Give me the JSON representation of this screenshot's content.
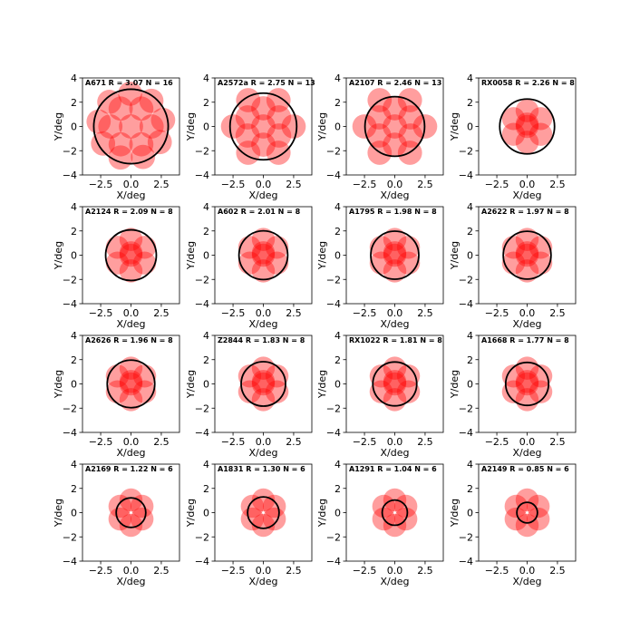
{
  "colors": {
    "fill": "#ff0000",
    "ring": "#000000",
    "axis": "#000000"
  },
  "chart_data": {
    "type": "scatter",
    "layout": "4x4 grid of panels",
    "xlabel": "X/deg",
    "ylabel": "Y/deg",
    "xlim": [
      -4,
      4
    ],
    "ylim": [
      -4,
      4
    ],
    "xticks": [
      "−2.5",
      "0.0",
      "2.5"
    ],
    "xtick_values": [
      -2.5,
      0.0,
      2.5
    ],
    "yticks": [
      "4",
      "2",
      "0",
      "−2",
      "−4"
    ],
    "ytick_values": [
      4,
      2,
      0,
      -2,
      -4
    ],
    "grid": false,
    "marker": "translucent red filled circles (pointings) with black outline circle of radius R",
    "panels": [
      {
        "title": "A671  R = 3.07  N = 16",
        "name": "A671",
        "R": 3.07,
        "N": 16
      },
      {
        "title": "A2572a R = 2.75 N = 13",
        "name": "A2572a",
        "R": 2.75,
        "N": 13
      },
      {
        "title": "A2107 R = 2.46 N = 13",
        "name": "A2107",
        "R": 2.46,
        "N": 13
      },
      {
        "title": "RX0058 R = 2.26 N = 8",
        "name": "RX0058",
        "R": 2.26,
        "N": 8
      },
      {
        "title": "A2124 R = 2.09 N = 8",
        "name": "A2124",
        "R": 2.09,
        "N": 8
      },
      {
        "title": "A602 R = 2.01 N = 8",
        "name": "A602",
        "R": 2.01,
        "N": 8
      },
      {
        "title": "A1795 R = 1.98 N = 8",
        "name": "A1795",
        "R": 1.98,
        "N": 8
      },
      {
        "title": "A2622 R = 1.97 N = 8",
        "name": "A2622",
        "R": 1.97,
        "N": 8
      },
      {
        "title": "A2626 R = 1.96 N = 8",
        "name": "A2626",
        "R": 1.96,
        "N": 8
      },
      {
        "title": "Z2844 R = 1.83 N = 8",
        "name": "Z2844",
        "R": 1.83,
        "N": 8
      },
      {
        "title": "RX1022 R = 1.81 N = 8",
        "name": "RX1022",
        "R": 1.81,
        "N": 8
      },
      {
        "title": "A1668 R = 1.77 N = 8",
        "name": "A1668",
        "R": 1.77,
        "N": 8
      },
      {
        "title": "A2169 R = 1.22 N = 6",
        "name": "A2169",
        "R": 1.22,
        "N": 6
      },
      {
        "title": "A1831 R = 1.30 N = 6",
        "name": "A1831",
        "R": 1.3,
        "N": 6
      },
      {
        "title": "A1291 R = 1.04 N = 6",
        "name": "A1291",
        "R": 1.04,
        "N": 6
      },
      {
        "title": "A2149 R = 0.85 N = 6",
        "name": "A2149",
        "R": 0.85,
        "N": 6
      }
    ]
  }
}
